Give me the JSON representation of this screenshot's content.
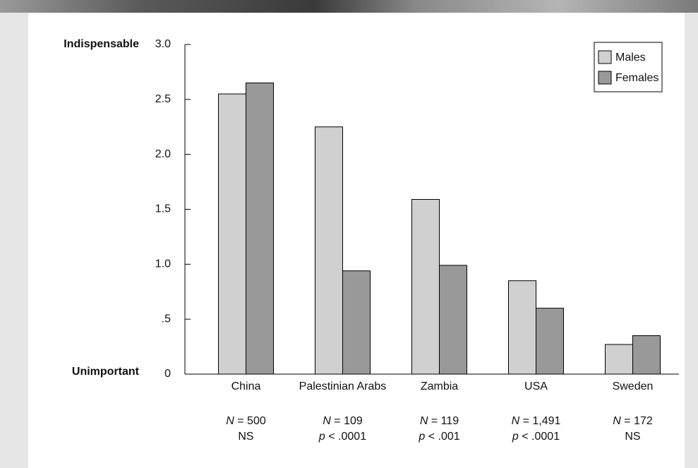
{
  "chart_data": {
    "type": "bar",
    "top_label": "Indispensable",
    "bottom_label": "Unimportant",
    "categories": [
      "China",
      "Palestinian Arabs",
      "Zambia",
      "USA",
      "Sweden"
    ],
    "series": [
      {
        "name": "Males",
        "color": "#d0d0d0",
        "values": [
          2.55,
          2.25,
          1.59,
          0.85,
          0.27
        ]
      },
      {
        "name": "Females",
        "color": "#999999",
        "values": [
          2.65,
          0.94,
          0.99,
          0.6,
          0.35
        ]
      }
    ],
    "n_symbol": "N",
    "p_symbol": "p",
    "stats": [
      {
        "n": "= 500",
        "sig": "NS"
      },
      {
        "n": "= 109",
        "sig": "< .0001",
        "p": true
      },
      {
        "n": "= 119",
        "sig": "< .001",
        "p": true
      },
      {
        "n": "= 1,491",
        "sig": "< .0001",
        "p": true
      },
      {
        "n": "= 172",
        "sig": "NS"
      }
    ],
    "ylim": [
      0,
      3
    ],
    "yticks": [
      0,
      {
        "value": 0.5,
        "label": ".5"
      },
      {
        "value": 1,
        "label": "1.0"
      },
      1.5,
      {
        "value": 2,
        "label": "2.0"
      },
      2.5,
      {
        "value": 3,
        "label": "3.0"
      }
    ],
    "legend": "top-right"
  }
}
